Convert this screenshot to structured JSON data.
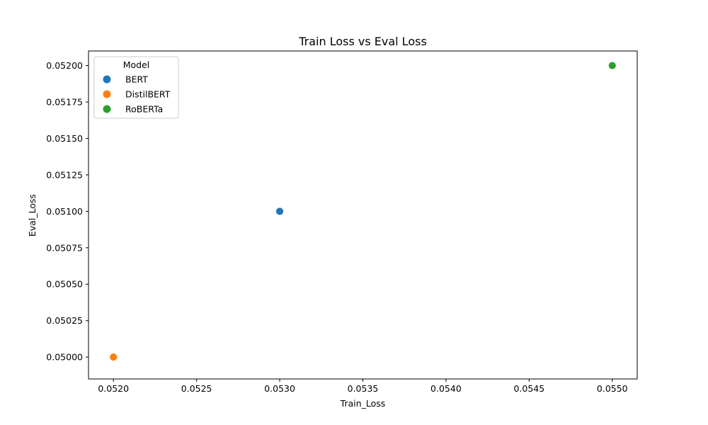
{
  "chart_data": {
    "type": "scatter",
    "title": "Train Loss vs Eval Loss",
    "xlabel": "Train_Loss",
    "ylabel": "Eval_Loss",
    "xlim": [
      0.05185,
      0.05515
    ],
    "ylim": [
      0.04985,
      0.0521
    ],
    "x_ticks": [
      0.052,
      0.0525,
      0.053,
      0.0535,
      0.054,
      0.0545,
      0.055
    ],
    "x_tick_labels": [
      "0.0520",
      "0.0525",
      "0.0530",
      "0.0535",
      "0.0540",
      "0.0545",
      "0.0550"
    ],
    "y_ticks": [
      0.05,
      0.05025,
      0.0505,
      0.05075,
      0.051,
      0.05125,
      0.0515,
      0.05175,
      0.052
    ],
    "y_tick_labels": [
      "0.05000",
      "0.05025",
      "0.05050",
      "0.05075",
      "0.05100",
      "0.05125",
      "0.05150",
      "0.05175",
      "0.05200"
    ],
    "grid": false,
    "legend": {
      "title": "Model",
      "placement": "top-left"
    },
    "series": [
      {
        "name": "BERT",
        "color": "#1f77b4",
        "points": [
          {
            "x": 0.053,
            "y": 0.051
          }
        ]
      },
      {
        "name": "DistilBERT",
        "color": "#ff7f0e",
        "points": [
          {
            "x": 0.052,
            "y": 0.05
          }
        ]
      },
      {
        "name": "RoBERTa",
        "color": "#2ca02c",
        "points": [
          {
            "x": 0.055,
            "y": 0.052
          }
        ]
      }
    ]
  }
}
